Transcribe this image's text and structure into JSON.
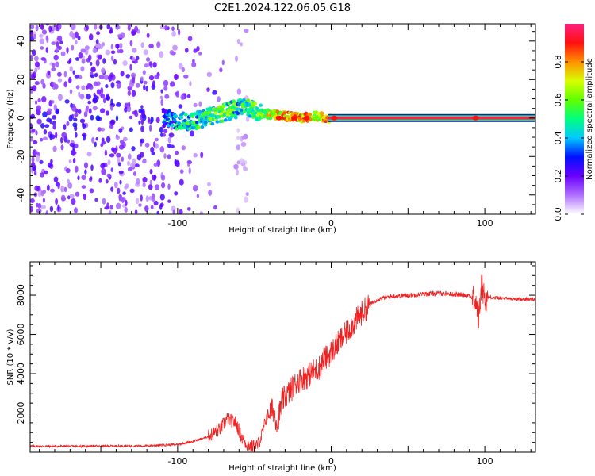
{
  "title": "C2E1.2024.122.06.05.G18",
  "chart_data": [
    {
      "type": "heatmap",
      "xlabel": "Height of straight line (km)",
      "ylabel": "Frequency (Hz)",
      "xlim": [
        -196,
        133
      ],
      "ylim": [
        -50,
        49
      ],
      "xticks": [
        -100,
        0,
        100
      ],
      "yticks": [
        -40,
        -20,
        0,
        20,
        40
      ],
      "colorbar": {
        "label": "Normalized spectral amplitude",
        "range": [
          0,
          1
        ],
        "ticks": [
          "0.0",
          "0.2",
          "0.4",
          "0.6",
          "0.8"
        ],
        "colors": [
          "#ffffff",
          "#b070ff",
          "#6a00ff",
          "#0010ff",
          "#00c8ff",
          "#00ff80",
          "#60ff00",
          "#d8ff00",
          "#ff9000",
          "#ff1010",
          "#ff2080"
        ]
      },
      "ridge": [
        {
          "x": -110,
          "y": 0,
          "a": 0.3
        },
        {
          "x": -95,
          "y": -2,
          "a": 0.45
        },
        {
          "x": -85,
          "y": -1,
          "a": 0.5
        },
        {
          "x": -75,
          "y": 2,
          "a": 0.55
        },
        {
          "x": -65,
          "y": 4,
          "a": 0.5
        },
        {
          "x": -55,
          "y": 6,
          "a": 0.45
        },
        {
          "x": -48,
          "y": 3,
          "a": 0.55
        },
        {
          "x": -40,
          "y": 2,
          "a": 0.65
        },
        {
          "x": -30,
          "y": 1,
          "a": 0.75
        },
        {
          "x": -20,
          "y": 0,
          "a": 0.85
        },
        {
          "x": -10,
          "y": 1,
          "a": 0.6
        },
        {
          "x": 0,
          "y": 0,
          "a": 0.9
        },
        {
          "x": 50,
          "y": 0,
          "a": 0.95
        },
        {
          "x": 90,
          "y": 0,
          "a": 0.95
        },
        {
          "x": 96,
          "y": 1,
          "a": 0.5
        },
        {
          "x": 133,
          "y": 0,
          "a": 0.95
        }
      ]
    },
    {
      "type": "line",
      "xlabel": "Height of straight line (km)",
      "ylabel": "SNR (10 * v/v)",
      "xlim": [
        -196,
        133
      ],
      "ylim": [
        0,
        9700
      ],
      "xticks": [
        -100,
        0,
        100
      ],
      "yticks": [
        2000,
        4000,
        6000,
        8000
      ],
      "series": [
        {
          "color": "#ee2222",
          "x": [
            -196,
            -160,
            -120,
            -100,
            -90,
            -80,
            -72,
            -68,
            -62,
            -58,
            -55,
            -52,
            -48,
            -45,
            -42,
            -38,
            -35,
            -32,
            -28,
            -25,
            -22,
            -18,
            -15,
            -12,
            -8,
            -5,
            -2,
            0,
            5,
            10,
            15,
            20,
            25,
            30,
            40,
            50,
            60,
            70,
            80,
            90,
            94,
            96,
            98,
            100,
            103,
            110,
            120,
            133
          ],
          "y": [
            300,
            300,
            320,
            400,
            550,
            800,
            1200,
            1700,
            1500,
            700,
            400,
            300,
            350,
            900,
            1800,
            2200,
            1500,
            2600,
            3000,
            3300,
            3600,
            3800,
            3900,
            4100,
            4300,
            4700,
            4900,
            5100,
            5600,
            6100,
            6600,
            7100,
            7500,
            7800,
            7950,
            8000,
            8050,
            8100,
            8050,
            8000,
            7700,
            6800,
            8600,
            7800,
            7900,
            7850,
            7800,
            7800
          ]
        }
      ]
    }
  ]
}
